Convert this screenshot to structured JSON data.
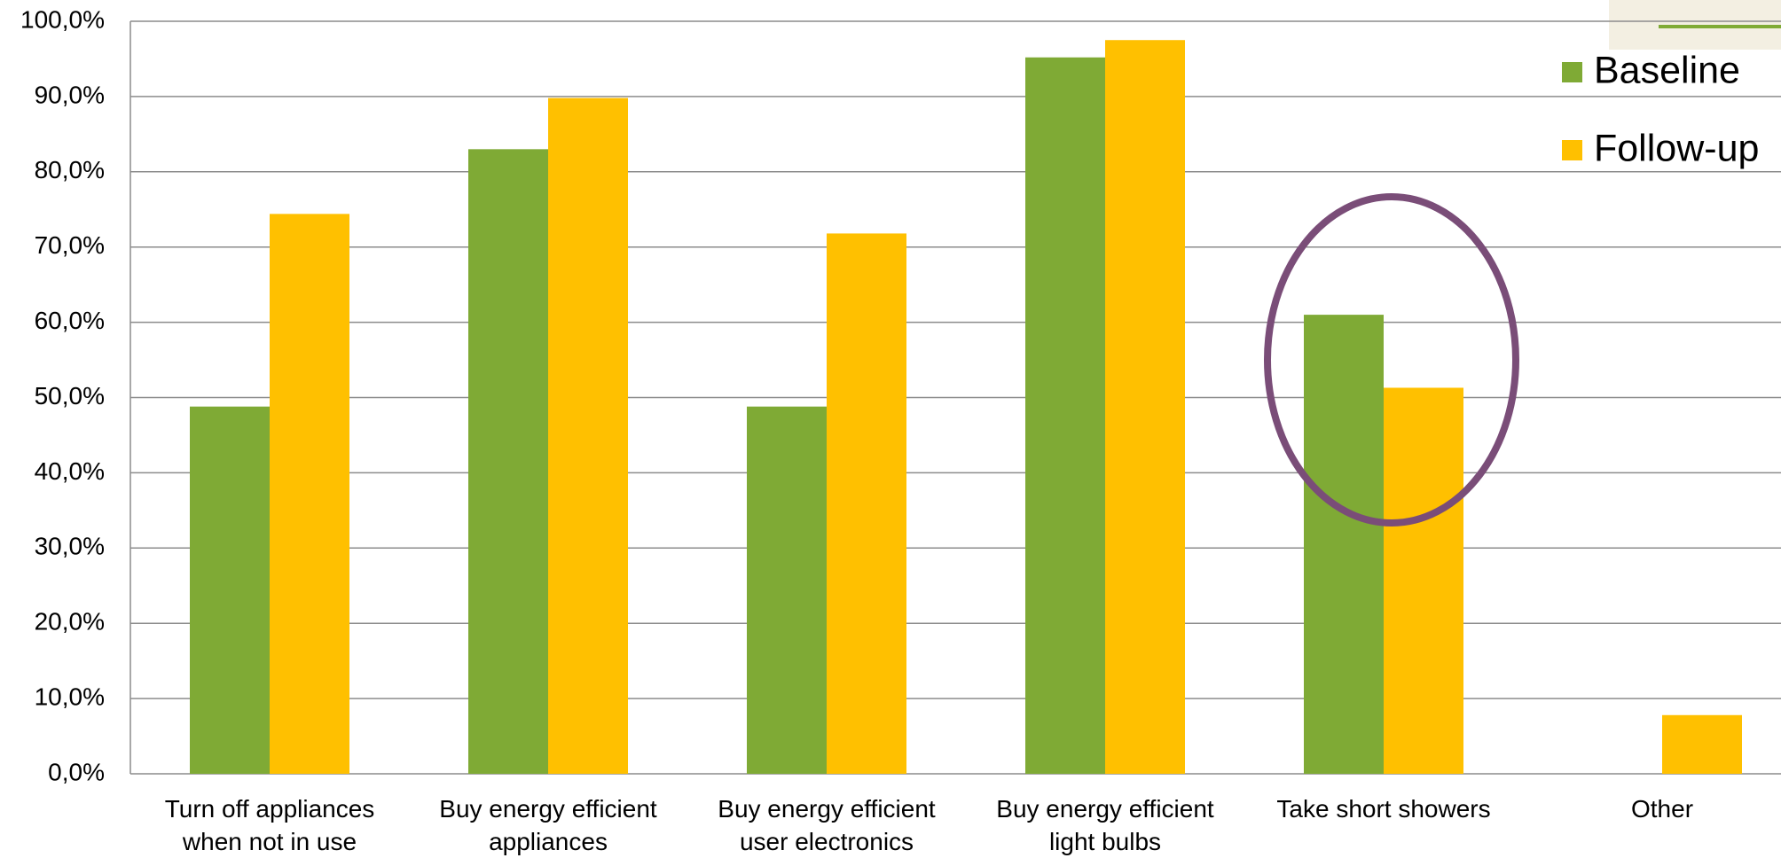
{
  "chart_data": {
    "type": "bar",
    "categories": [
      "Turn off appliances when not in use",
      "Buy energy efficient appliances",
      "Buy energy efficient user electronics",
      "Buy energy efficient light bulbs",
      "Take short showers",
      "Other"
    ],
    "series": [
      {
        "name": "Baseline",
        "color": "#7faa35",
        "values": [
          48.8,
          83.0,
          48.8,
          95.2,
          61.0,
          0
        ]
      },
      {
        "name": "Follow-up",
        "color": "#ffc000",
        "values": [
          74.4,
          89.8,
          71.8,
          97.5,
          51.3,
          7.8
        ]
      }
    ],
    "ylim": [
      0,
      100
    ],
    "yticks": [
      {
        "value": 0,
        "label": "0,0%"
      },
      {
        "value": 10,
        "label": "10,0%"
      },
      {
        "value": 20,
        "label": "20,0%"
      },
      {
        "value": 30,
        "label": "30,0%"
      },
      {
        "value": 40,
        "label": "40,0%"
      },
      {
        "value": 50,
        "label": "50,0%"
      },
      {
        "value": 60,
        "label": "60,0%"
      },
      {
        "value": 70,
        "label": "70,0%"
      },
      {
        "value": 80,
        "label": "80,0%"
      },
      {
        "value": 90,
        "label": "90,0%"
      },
      {
        "value": 100,
        "label": "100,0%"
      }
    ],
    "grid": true,
    "legend": "upper right"
  }
}
